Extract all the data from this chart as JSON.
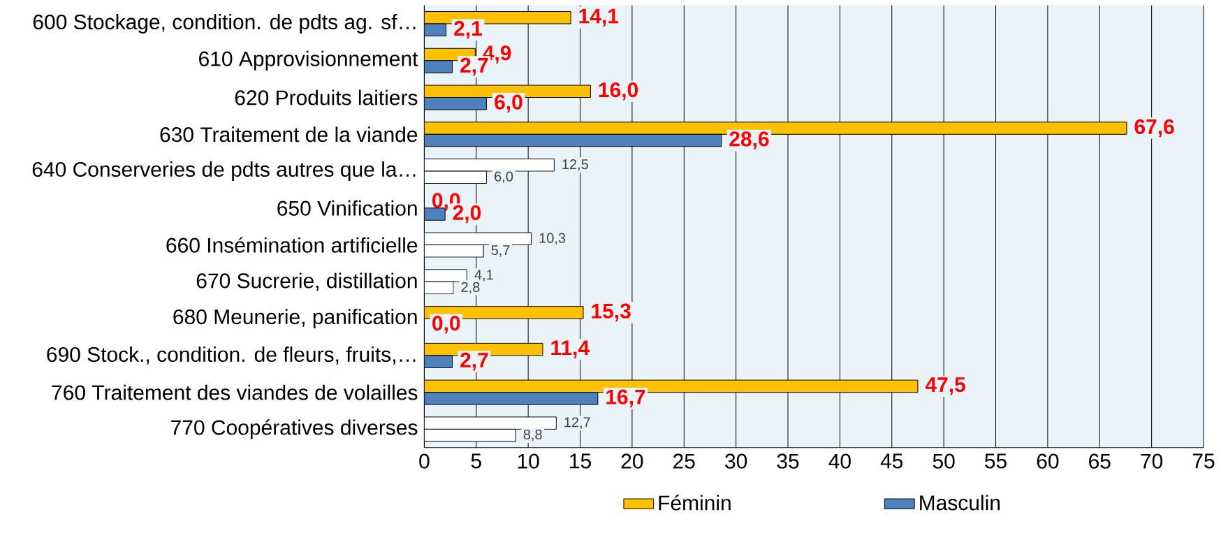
{
  "chart_data": {
    "type": "bar",
    "orientation": "horizontal",
    "categories": [
      "600 Stockage, condition. de pdts ag. sf…",
      "610 Approvisionnement",
      "620 Produits laitiers",
      "630 Traitement de la viande",
      "640 Conserveries de pdts autres que la…",
      "650 Vinification",
      "660 Insémination artificielle",
      "670 Sucrerie, distillation",
      "680 Meunerie, panification",
      "690 Stock., condition. de fleurs, fruits,…",
      "760 Traitement des viandes de volailles",
      "770 Coopératives diverses"
    ],
    "series": [
      {
        "name": "Féminin",
        "color": "#ffc000",
        "colors": [
          "#ffc000",
          "#ffc000",
          "#ffc000",
          "#ffc000",
          "#ffffff",
          "#ffc000",
          "#ffffff",
          "#ffffff",
          "#ffc000",
          "#ffc000",
          "#ffc000",
          "#ffffff"
        ],
        "values": [
          14.1,
          4.9,
          16.0,
          67.6,
          12.5,
          0.0,
          10.3,
          4.1,
          15.3,
          11.4,
          47.5,
          12.7
        ],
        "value_labels": [
          "14,1",
          "4,9",
          "16,0",
          "67,6",
          "12,5",
          "0,0",
          "10,3",
          "4,1",
          "15,3",
          "11,4",
          "47,5",
          "12,7"
        ]
      },
      {
        "name": "Masculin",
        "color": "#4f81bd",
        "colors": [
          "#4f81bd",
          "#4f81bd",
          "#4f81bd",
          "#4f81bd",
          "#ffffff",
          "#4f81bd",
          "#ffffff",
          "#ffffff",
          "#4f81bd",
          "#4f81bd",
          "#4f81bd",
          "#ffffff"
        ],
        "values": [
          2.1,
          2.7,
          6.0,
          28.6,
          6.0,
          2.0,
          5.7,
          2.8,
          0.0,
          2.7,
          16.7,
          8.8
        ],
        "value_labels": [
          "2,1",
          "2,7",
          "6,0",
          "28,6",
          "6,0",
          "2,0",
          "5,7",
          "2,8",
          "0,0",
          "2,7",
          "16,7",
          "8,8"
        ]
      }
    ],
    "xlim": [
      0,
      75
    ],
    "xticks": [
      0,
      5,
      10,
      15,
      20,
      25,
      30,
      35,
      40,
      45,
      50,
      55,
      60,
      65,
      70,
      75
    ],
    "grid": "x",
    "legend": "bottom"
  }
}
